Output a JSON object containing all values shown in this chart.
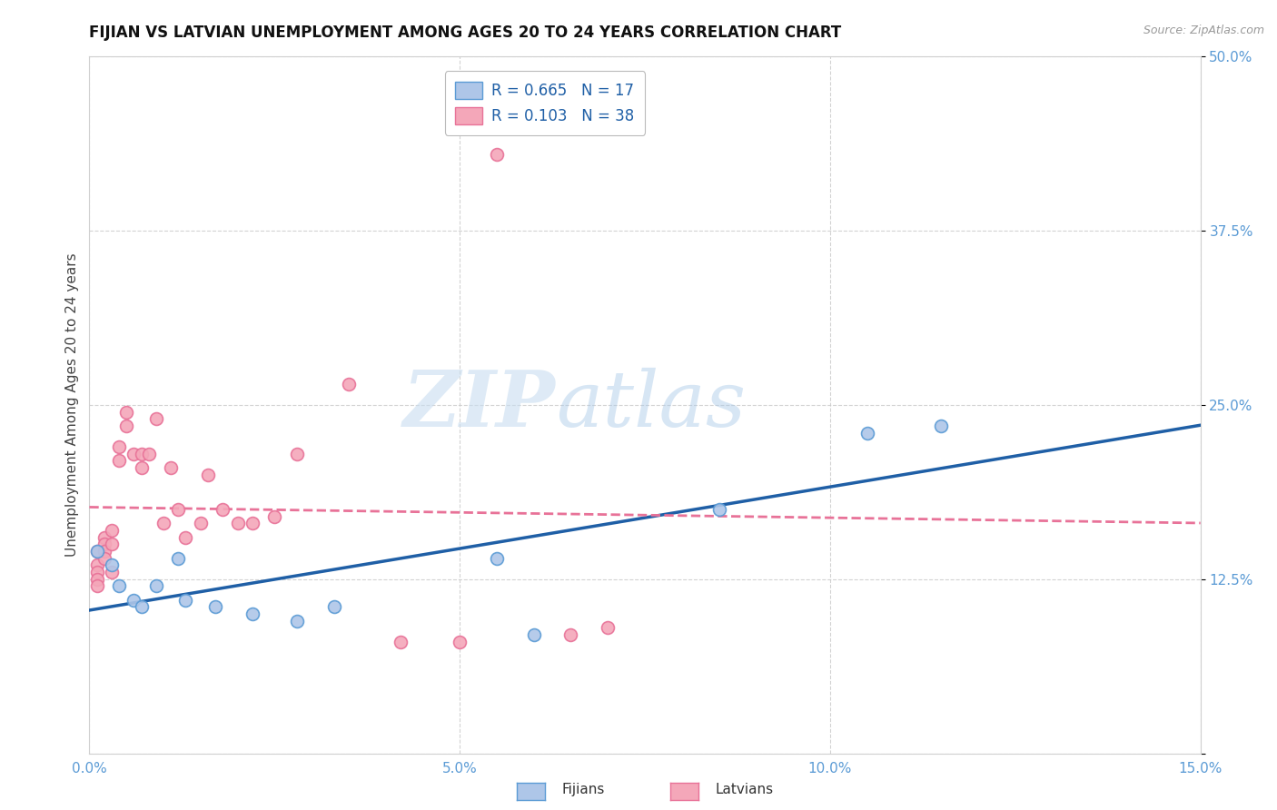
{
  "title": "FIJIAN VS LATVIAN UNEMPLOYMENT AMONG AGES 20 TO 24 YEARS CORRELATION CHART",
  "source": "Source: ZipAtlas.com",
  "ylabel": "Unemployment Among Ages 20 to 24 years",
  "xlim": [
    0.0,
    0.15
  ],
  "ylim": [
    0.0,
    0.5
  ],
  "xticks": [
    0.0,
    0.05,
    0.1,
    0.15
  ],
  "xticklabels": [
    "0.0%",
    "5.0%",
    "10.0%",
    "15.0%"
  ],
  "yticks": [
    0.0,
    0.125,
    0.25,
    0.375,
    0.5
  ],
  "yticklabels": [
    "",
    "12.5%",
    "25.0%",
    "37.5%",
    "50.0%"
  ],
  "fijian_color": "#aec6e8",
  "latvian_color": "#f4a7b9",
  "fijian_edge_color": "#5b9bd5",
  "latvian_edge_color": "#e87298",
  "fijian_line_color": "#1f5fa6",
  "latvian_line_color": "#e87298",
  "legend_R_fijian": "R = 0.665",
  "legend_N_fijian": "N = 17",
  "legend_R_latvian": "R = 0.103",
  "legend_N_latvian": "N = 38",
  "watermark_zip": "ZIP",
  "watermark_atlas": "atlas",
  "background_color": "#ffffff",
  "grid_color": "#c8c8c8",
  "fijians_x": [
    0.001,
    0.003,
    0.004,
    0.006,
    0.007,
    0.009,
    0.012,
    0.013,
    0.017,
    0.022,
    0.028,
    0.033,
    0.055,
    0.06,
    0.085,
    0.105,
    0.115
  ],
  "fijians_y": [
    0.145,
    0.135,
    0.12,
    0.11,
    0.105,
    0.12,
    0.14,
    0.11,
    0.105,
    0.1,
    0.095,
    0.105,
    0.14,
    0.085,
    0.175,
    0.23,
    0.235
  ],
  "latvians_x": [
    0.001,
    0.001,
    0.001,
    0.001,
    0.001,
    0.002,
    0.002,
    0.002,
    0.002,
    0.003,
    0.003,
    0.003,
    0.004,
    0.004,
    0.005,
    0.005,
    0.006,
    0.007,
    0.007,
    0.008,
    0.009,
    0.01,
    0.011,
    0.012,
    0.013,
    0.015,
    0.016,
    0.018,
    0.02,
    0.022,
    0.025,
    0.028,
    0.035,
    0.042,
    0.05,
    0.055,
    0.065,
    0.07
  ],
  "latvians_y": [
    0.145,
    0.135,
    0.13,
    0.125,
    0.12,
    0.155,
    0.15,
    0.145,
    0.14,
    0.16,
    0.15,
    0.13,
    0.22,
    0.21,
    0.245,
    0.235,
    0.215,
    0.215,
    0.205,
    0.215,
    0.24,
    0.165,
    0.205,
    0.175,
    0.155,
    0.165,
    0.2,
    0.175,
    0.165,
    0.165,
    0.17,
    0.215,
    0.265,
    0.08,
    0.08,
    0.43,
    0.085,
    0.09
  ],
  "title_fontsize": 12,
  "axis_label_fontsize": 11,
  "tick_fontsize": 11,
  "legend_fontsize": 12,
  "marker_size": 100,
  "bottom_legend_labels": [
    "Fijians",
    "Latvians"
  ]
}
